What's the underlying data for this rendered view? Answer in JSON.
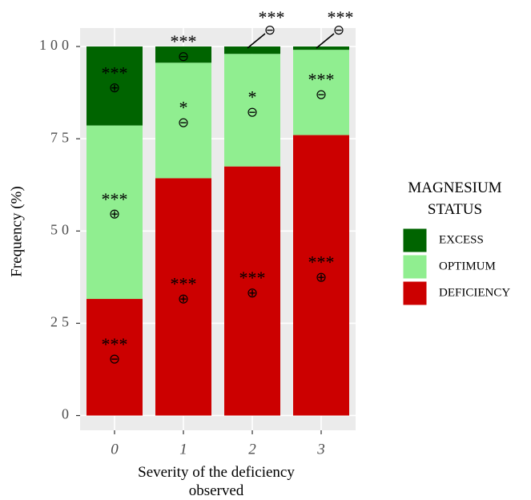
{
  "chart_data": {
    "type": "stacked_bar",
    "xlabel": "Severity of the deficiency\nobserved",
    "ylabel": "Frequency (%)",
    "legend_title": "MAGNESIUM\nSTATUS",
    "categories": [
      "0",
      "1",
      "2",
      "3"
    ],
    "series": [
      {
        "name": "DEFICIENCY",
        "color": "#cc0000",
        "values": [
          31.6,
          64.3,
          67.5,
          76.0
        ],
        "labels": [
          "***",
          "***",
          "***",
          "***"
        ],
        "signs": [
          "⊖",
          "⊕",
          "⊕",
          "⊕"
        ]
      },
      {
        "name": "OPTIMUM",
        "color": "#90ee90",
        "values": [
          47.0,
          31.3,
          30.5,
          23.1
        ],
        "labels": [
          "***",
          "*",
          "*",
          "***"
        ],
        "signs": [
          "⊕",
          "⊖",
          "⊖",
          "⊖"
        ]
      },
      {
        "name": "EXCESS",
        "color": "#006400",
        "values": [
          21.4,
          4.4,
          2.0,
          0.9
        ],
        "labels": [
          "***",
          "***",
          "***",
          "***"
        ],
        "signs": [
          "⊕",
          "⊖",
          "⊖",
          "⊖"
        ]
      }
    ],
    "ylim": [
      -4,
      105
    ],
    "yticks": [
      0,
      25,
      50,
      75,
      100
    ],
    "grid": true
  }
}
